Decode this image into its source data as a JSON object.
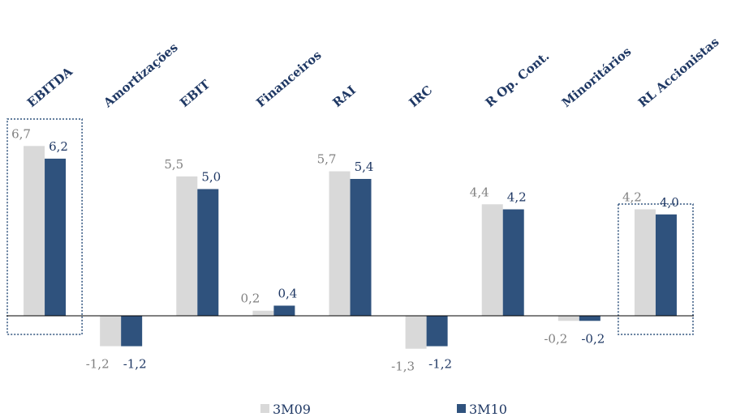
{
  "chart_data": {
    "type": "bar",
    "categories": [
      "EBITDA",
      "Amortizações",
      "EBIT",
      "Financeiros",
      "RAI",
      "IRC",
      "R Op. Cont.",
      "Minoritários",
      "RL Accionistas"
    ],
    "series": [
      {
        "name": "3M09",
        "values": [
          6.7,
          -1.2,
          5.5,
          0.2,
          5.7,
          -1.3,
          4.4,
          -0.2,
          4.2
        ],
        "labels": [
          "6,7",
          "-1,2",
          "5,5",
          "0,2",
          "5,7",
          "-1,3",
          "4,4",
          "-0,2",
          "4,2"
        ],
        "color": "#d9d9d9",
        "label_color": "#808080"
      },
      {
        "name": "3M10",
        "values": [
          6.2,
          -1.2,
          5.0,
          0.4,
          5.4,
          -1.2,
          4.2,
          -0.2,
          4.0
        ],
        "labels": [
          "6,2",
          "-1,2",
          "5,0",
          "0,4",
          "5,4",
          "-1,2",
          "4,2",
          "-0,2",
          "4,0"
        ],
        "color": "#2f527d",
        "label_color": "#1f3864"
      }
    ],
    "highlighted_categories": [
      "EBITDA",
      "RL Accionistas"
    ],
    "legend_position": "bottom",
    "ylim": [
      -1.4,
      6.9
    ],
    "grid": false
  }
}
